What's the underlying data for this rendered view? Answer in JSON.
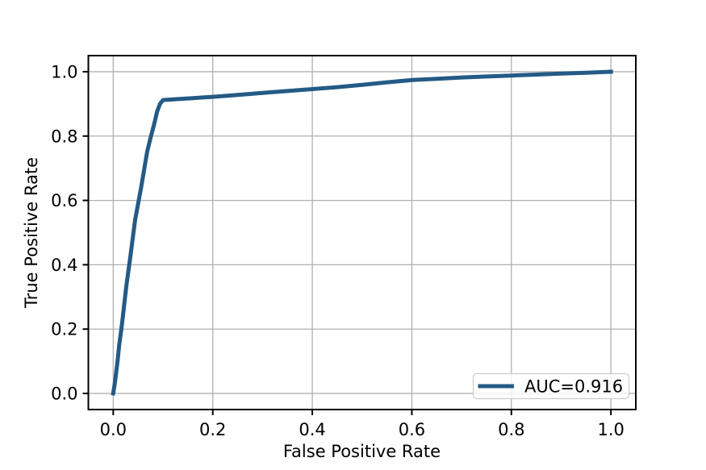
{
  "colors": {
    "line": "#245a85",
    "grid": "#b0b0b0",
    "spine": "#000000",
    "legend_border": "#cccccc",
    "legend_bg": "#ffffff",
    "text": "#000000",
    "background": "#ffffff"
  },
  "chart_data": {
    "type": "line",
    "title": "",
    "xlabel": "False Positive Rate",
    "ylabel": "True Positive Rate",
    "xlim": [
      -0.05,
      1.05
    ],
    "ylim": [
      -0.05,
      1.05
    ],
    "grid": true,
    "x_ticks": {
      "values": [
        0.0,
        0.2,
        0.4,
        0.6,
        0.8,
        1.0
      ],
      "labels": [
        "0.0",
        "0.2",
        "0.4",
        "0.6",
        "0.8",
        "1.0"
      ]
    },
    "y_ticks": {
      "values": [
        0.0,
        0.2,
        0.4,
        0.6,
        0.8,
        1.0
      ],
      "labels": [
        "0.0",
        "0.2",
        "0.4",
        "0.6",
        "0.8",
        "1.0"
      ]
    },
    "legend": {
      "position": "lower right",
      "label": "AUC=0.916"
    },
    "auc": 0.916,
    "series": [
      {
        "name": "ROC curve",
        "color": "#245a85",
        "line_width": 5,
        "points": [
          [
            0.0,
            0.0
          ],
          [
            0.003,
            0.03
          ],
          [
            0.006,
            0.065
          ],
          [
            0.009,
            0.105
          ],
          [
            0.012,
            0.15
          ],
          [
            0.015,
            0.185
          ],
          [
            0.018,
            0.22
          ],
          [
            0.022,
            0.275
          ],
          [
            0.026,
            0.33
          ],
          [
            0.03,
            0.375
          ],
          [
            0.034,
            0.42
          ],
          [
            0.039,
            0.48
          ],
          [
            0.044,
            0.54
          ],
          [
            0.05,
            0.59
          ],
          [
            0.056,
            0.64
          ],
          [
            0.062,
            0.695
          ],
          [
            0.068,
            0.75
          ],
          [
            0.075,
            0.795
          ],
          [
            0.082,
            0.835
          ],
          [
            0.088,
            0.875
          ],
          [
            0.094,
            0.9
          ],
          [
            0.1,
            0.912
          ],
          [
            0.13,
            0.915
          ],
          [
            0.16,
            0.918
          ],
          [
            0.2,
            0.922
          ],
          [
            0.25,
            0.928
          ],
          [
            0.3,
            0.934
          ],
          [
            0.35,
            0.94
          ],
          [
            0.4,
            0.946
          ],
          [
            0.45,
            0.952
          ],
          [
            0.5,
            0.959
          ],
          [
            0.55,
            0.967
          ],
          [
            0.6,
            0.974
          ],
          [
            0.65,
            0.978
          ],
          [
            0.7,
            0.982
          ],
          [
            0.75,
            0.985
          ],
          [
            0.8,
            0.988
          ],
          [
            0.85,
            0.991
          ],
          [
            0.9,
            0.994
          ],
          [
            0.95,
            0.997
          ],
          [
            1.0,
            1.0
          ]
        ]
      }
    ]
  }
}
